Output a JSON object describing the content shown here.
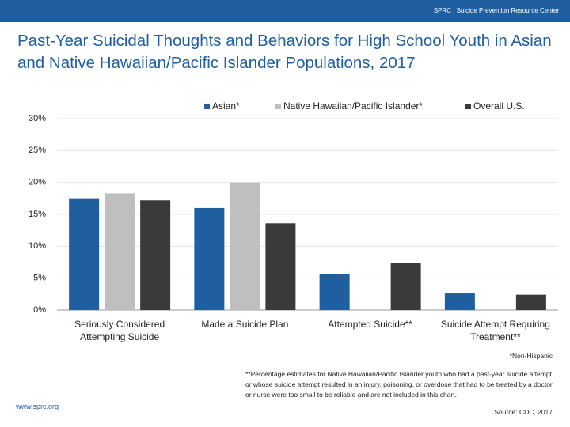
{
  "header": {
    "banner": "SPRC | Suicide Prevention Resource Center"
  },
  "chart_data": {
    "type": "bar",
    "title": "Past-Year Suicidal Thoughts and Behaviors for High School Youth in Asian and Native Hawaiian/Pacific Islander Populations, 2017",
    "categories": [
      "Seriously Considered Attempting Suicide",
      "Made a Suicide Plan",
      "Attempted Suicide**",
      "Suicide Attempt Requiring Treatment**"
    ],
    "series": [
      {
        "name": "Asian*",
        "color": "#1f5fa0",
        "values": [
          17.4,
          16.0,
          5.6,
          2.6
        ]
      },
      {
        "name": "Native Hawaiian/Pacific Islander*",
        "color": "#bfbfbf",
        "values": [
          18.3,
          20.0,
          null,
          null
        ]
      },
      {
        "name": "Overall U.S.",
        "color": "#3a3a3a",
        "values": [
          17.2,
          13.6,
          7.4,
          2.4
        ]
      }
    ],
    "ylim": [
      0,
      30
    ],
    "yticks": [
      {
        "value": 0,
        "label": "0%"
      },
      {
        "value": 5,
        "label": "5%"
      },
      {
        "value": 10,
        "label": "10%"
      },
      {
        "value": 15,
        "label": "15%"
      },
      {
        "value": 20,
        "label": "20%"
      },
      {
        "value": 25,
        "label": "25%"
      },
      {
        "value": 30,
        "label": "30%"
      }
    ],
    "grid": true
  },
  "footer": {
    "note1": "*Non-Hispanic",
    "note2": "**Percentage estimates for Native Hawaiian/Pacific Islander youth who had a past-year suicide attempt or whose suicide attempt resulted in an injury, poisoning, or overdose that had to be treated by a doctor or nurse were too small to be reliable and are not included in this chart.",
    "url": "www.sprc.org",
    "source": "Source: CDC, 2017"
  }
}
